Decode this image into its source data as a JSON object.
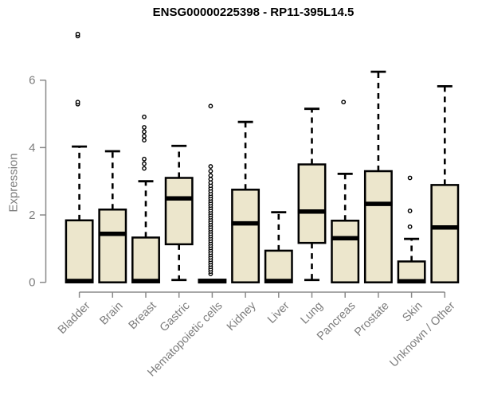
{
  "title": "ENSG00000225398 - RP11-395L14.5",
  "colors": {
    "box_fill": "#ece6cc",
    "box_line": "#000000",
    "axis": "#8a8a8a",
    "text": "#7d7d7d",
    "title": "#000000"
  },
  "chart_data": {
    "type": "box",
    "title": "ENSG00000225398 - RP11-395L14.5",
    "xlabel": "",
    "ylabel": "Expression",
    "ylim": [
      0,
      7.45
    ],
    "yticks": [
      0,
      2,
      4,
      6
    ],
    "grid": false,
    "legend": "none",
    "categories": [
      "Bladder",
      "Brain",
      "Breast",
      "Gastric",
      "Hematopoietic cells",
      "Kidney",
      "Liver",
      "Lung",
      "Pancreas",
      "Prostate",
      "Skin",
      "Unknown / Other"
    ],
    "series": [
      {
        "name": "Bladder",
        "low": 0,
        "q1": 0,
        "median": 0.04,
        "q3": 1.84,
        "high": 4.03,
        "outliers": [
          5.29,
          5.35,
          7.31,
          7.37
        ]
      },
      {
        "name": "Brain",
        "low": 0,
        "q1": 0,
        "median": 1.44,
        "q3": 2.16,
        "high": 3.89,
        "outliers": []
      },
      {
        "name": "Breast",
        "low": 0,
        "q1": 0,
        "median": 0.04,
        "q3": 1.33,
        "high": 3.0,
        "outliers": [
          3.38,
          3.52,
          3.66,
          4.22,
          4.34,
          4.47,
          4.6,
          4.91
        ]
      },
      {
        "name": "Gastric",
        "low": 0.07,
        "q1": 1.13,
        "median": 2.49,
        "q3": 3.1,
        "high": 4.05,
        "outliers": []
      },
      {
        "name": "Hematopoietic cells",
        "low": 0,
        "q1": 0,
        "median": 0.03,
        "q3": 0.08,
        "high": 0.08,
        "outliers": [
          0.25,
          0.32,
          0.39,
          0.46,
          0.53,
          0.6,
          0.67,
          0.74,
          0.81,
          0.88,
          0.95,
          1.02,
          1.09,
          1.16,
          1.23,
          1.3,
          1.37,
          1.44,
          1.51,
          1.58,
          1.65,
          1.72,
          1.79,
          1.86,
          1.93,
          2.0,
          2.07,
          2.14,
          2.21,
          2.28,
          2.35,
          2.42,
          2.49,
          2.56,
          2.63,
          2.71,
          2.79,
          2.87,
          2.96,
          3.06,
          3.17,
          3.3,
          3.44,
          5.23
        ]
      },
      {
        "name": "Kidney",
        "low": 0,
        "q1": 0,
        "median": 1.75,
        "q3": 2.75,
        "high": 4.76,
        "outliers": []
      },
      {
        "name": "Liver",
        "low": 0,
        "q1": 0,
        "median": 0.04,
        "q3": 0.94,
        "high": 2.08,
        "outliers": []
      },
      {
        "name": "Lung",
        "low": 0.07,
        "q1": 1.17,
        "median": 2.1,
        "q3": 3.5,
        "high": 5.15,
        "outliers": []
      },
      {
        "name": "Pancreas",
        "low": 0,
        "q1": 0,
        "median": 1.31,
        "q3": 1.83,
        "high": 3.22,
        "outliers": [
          5.35
        ]
      },
      {
        "name": "Prostate",
        "low": 0,
        "q1": 0,
        "median": 2.33,
        "q3": 3.3,
        "high": 6.25,
        "outliers": []
      },
      {
        "name": "Skin",
        "low": 0,
        "q1": 0,
        "median": 0.03,
        "q3": 0.62,
        "high": 1.29,
        "outliers": [
          1.65,
          2.12,
          3.1
        ]
      },
      {
        "name": "Unknown / Other",
        "low": 0,
        "q1": 0,
        "median": 1.63,
        "q3": 2.89,
        "high": 5.82,
        "outliers": []
      }
    ]
  }
}
